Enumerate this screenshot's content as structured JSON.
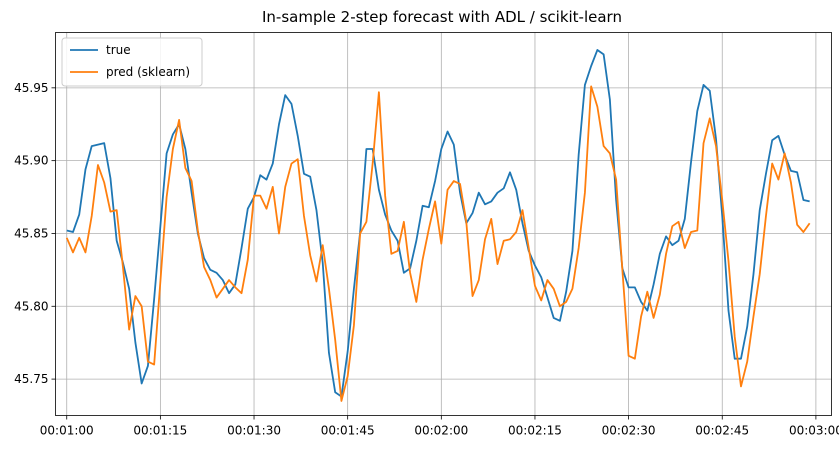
{
  "chart_data": {
    "type": "line",
    "title": "In-sample 2-step forecast with ADL / scikit-learn",
    "xlabel": "",
    "ylabel": "",
    "x_unit": "seconds",
    "x_start": "00:01:00",
    "x_step_seconds": 1,
    "xlim": [
      58.2,
      182.5
    ],
    "ylim": [
      45.725,
      45.988
    ],
    "x_ticks": [
      {
        "value": 60,
        "label": "00:01:00"
      },
      {
        "value": 75,
        "label": "00:01:15"
      },
      {
        "value": 90,
        "label": "00:01:30"
      },
      {
        "value": 105,
        "label": "00:01:45"
      },
      {
        "value": 120,
        "label": "00:02:00"
      },
      {
        "value": 135,
        "label": "00:02:15"
      },
      {
        "value": 150,
        "label": "00:02:30"
      },
      {
        "value": 165,
        "label": "00:02:45"
      },
      {
        "value": 180,
        "label": "00:03:00"
      }
    ],
    "y_ticks": [
      {
        "value": 45.75,
        "label": "45.75"
      },
      {
        "value": 45.8,
        "label": "45.80"
      },
      {
        "value": 45.85,
        "label": "45.85"
      },
      {
        "value": 45.9,
        "label": "45.90"
      },
      {
        "value": 45.95,
        "label": "45.95"
      }
    ],
    "grid": true,
    "legend_position": "top-left",
    "series": [
      {
        "name": "true",
        "color": "#1f77b4",
        "values": [
          45.852,
          45.851,
          45.863,
          45.894,
          45.91,
          45.911,
          45.912,
          45.888,
          45.845,
          45.83,
          45.812,
          45.775,
          45.747,
          45.759,
          45.805,
          45.855,
          45.905,
          45.918,
          45.925,
          45.908,
          45.878,
          45.85,
          45.833,
          45.825,
          45.823,
          45.818,
          45.809,
          45.815,
          45.84,
          45.867,
          45.875,
          45.89,
          45.887,
          45.898,
          45.925,
          45.945,
          45.939,
          45.917,
          45.891,
          45.889,
          45.866,
          45.83,
          45.768,
          45.741,
          45.738,
          45.769,
          45.812,
          45.851,
          45.908,
          45.908,
          45.88,
          45.863,
          45.852,
          45.845,
          45.823,
          45.826,
          45.845,
          45.869,
          45.868,
          45.886,
          45.908,
          45.92,
          45.911,
          45.878,
          45.857,
          45.864,
          45.878,
          45.87,
          45.872,
          45.878,
          45.881,
          45.892,
          45.88,
          45.857,
          45.838,
          45.828,
          45.82,
          45.806,
          45.792,
          45.79,
          45.81,
          45.838,
          45.904,
          45.952,
          45.965,
          45.976,
          45.973,
          45.942,
          45.873,
          45.826,
          45.813,
          45.813,
          45.803,
          45.797,
          45.815,
          45.836,
          45.848,
          45.842,
          45.845,
          45.86,
          45.899,
          45.934,
          45.952,
          45.948,
          45.915,
          45.862,
          45.797,
          45.764,
          45.764,
          45.786,
          45.822,
          45.866,
          45.891,
          45.914,
          45.917,
          45.904,
          45.893,
          45.892,
          45.873,
          45.872
        ]
      },
      {
        "name": "pred (sklearn)",
        "color": "#ff7f0e",
        "values": [
          45.847,
          45.837,
          45.847,
          45.837,
          45.862,
          45.897,
          45.885,
          45.865,
          45.866,
          45.827,
          45.784,
          45.807,
          45.8,
          45.762,
          45.76,
          45.817,
          45.875,
          45.908,
          45.928,
          45.895,
          45.886,
          45.852,
          45.827,
          45.818,
          45.806,
          45.812,
          45.818,
          45.813,
          45.809,
          45.832,
          45.876,
          45.876,
          45.867,
          45.882,
          45.85,
          45.882,
          45.898,
          45.901,
          45.862,
          45.835,
          45.817,
          45.842,
          45.812,
          45.777,
          45.735,
          45.752,
          45.787,
          45.85,
          45.858,
          45.898,
          45.947,
          45.876,
          45.836,
          45.838,
          45.858,
          45.823,
          45.803,
          45.832,
          45.853,
          45.872,
          45.843,
          45.88,
          45.886,
          45.884,
          45.858,
          45.807,
          45.818,
          45.846,
          45.86,
          45.829,
          45.845,
          45.846,
          45.851,
          45.866,
          45.84,
          45.814,
          45.804,
          45.818,
          45.812,
          45.8,
          45.803,
          45.812,
          45.84,
          45.878,
          45.951,
          45.937,
          45.91,
          45.905,
          45.887,
          45.825,
          45.766,
          45.764,
          45.793,
          45.81,
          45.792,
          45.808,
          45.836,
          45.855,
          45.858,
          45.84,
          45.851,
          45.852,
          45.912,
          45.929,
          45.91,
          45.873,
          45.831,
          45.779,
          45.745,
          45.762,
          45.793,
          45.822,
          45.862,
          45.898,
          45.887,
          45.905,
          45.885,
          45.856,
          45.851,
          45.857
        ]
      }
    ]
  }
}
